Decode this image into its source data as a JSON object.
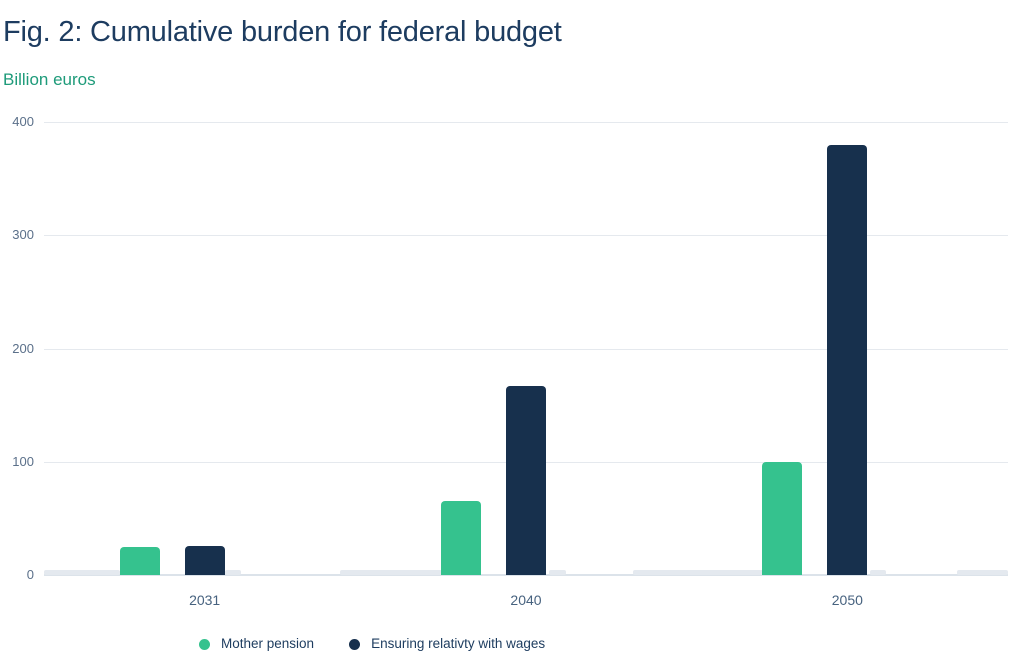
{
  "title": "Fig. 2: Cumulative burden for federal budget",
  "subtitle": "Billion euros",
  "colors": {
    "title": "#1d3c60",
    "subtitle": "#1e9b7a",
    "axis_tick": "#5b708a",
    "x_label": "#47627f",
    "legend_text": "#1d3c5f",
    "gridline": "#e5e9ee",
    "baseline": "#dce3ea",
    "baseline_segment": "#e4e9ef",
    "series_green": "#35c28e",
    "series_navy": "#17304d"
  },
  "chart_data": {
    "type": "bar",
    "title": "Fig. 2: Cumulative burden for federal budget",
    "subtitle": "Billion euros",
    "unit": "Billion euros",
    "categories": [
      "2031",
      "2040",
      "2050"
    ],
    "series": [
      {
        "name": "Mother pension",
        "color": "#35c28e",
        "values": [
          25,
          65,
          100
        ]
      },
      {
        "name": "Ensuring relativty with wages",
        "color": "#17304d",
        "values": [
          26,
          167,
          380
        ]
      }
    ],
    "xlabel": "",
    "ylabel": "Billion euros",
    "ylim": [
      0,
      400
    ],
    "yticks": [
      0,
      100,
      200,
      300,
      400
    ],
    "grid": true,
    "legend_position": "bottom-left"
  }
}
